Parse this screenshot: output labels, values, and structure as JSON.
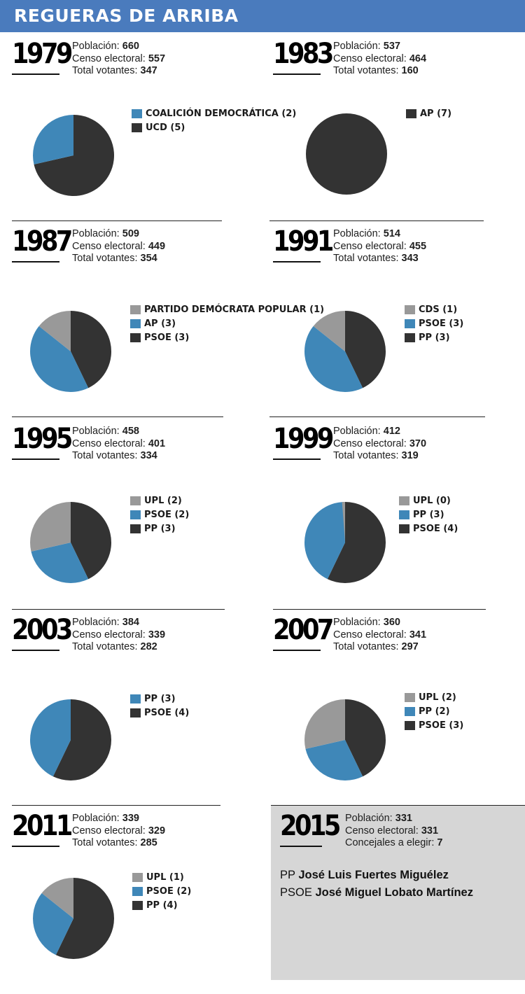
{
  "title": "REGUERAS DE ARRIBA",
  "labels": {
    "poblacion": "Población:",
    "censo": "Censo electoral:",
    "votantes": "Total votantes:",
    "concejales": "Concejales a elegir:"
  },
  "colors": {
    "gray": "#999999",
    "blue": "#3f87b8",
    "dark": "#333333"
  },
  "chart_data": [
    {
      "type": "pie",
      "year": "1979",
      "poblacion": "660",
      "censo": "557",
      "votantes": "347",
      "slices": [
        {
          "label": "COALICIÓN DEMOCRÁTICA (2)",
          "value": 2,
          "color": "#3f87b8"
        },
        {
          "label": "UCD (5)",
          "value": 5,
          "color": "#333333"
        }
      ]
    },
    {
      "type": "pie",
      "year": "1983",
      "poblacion": "537",
      "censo": "464",
      "votantes": "160",
      "slices": [
        {
          "label": "AP (7)",
          "value": 7,
          "color": "#333333"
        }
      ]
    },
    {
      "type": "pie",
      "year": "1987",
      "poblacion": "509",
      "censo": "449",
      "votantes": "354",
      "slices": [
        {
          "label": "PARTIDO DEMÓCRATA POPULAR (1)",
          "value": 1,
          "color": "#999999"
        },
        {
          "label": "AP (3)",
          "value": 3,
          "color": "#3f87b8"
        },
        {
          "label": "PSOE (3)",
          "value": 3,
          "color": "#333333"
        }
      ]
    },
    {
      "type": "pie",
      "year": "1991",
      "poblacion": "514",
      "censo": "455",
      "votantes": "343",
      "slices": [
        {
          "label": "CDS (1)",
          "value": 1,
          "color": "#999999"
        },
        {
          "label": "PSOE (3)",
          "value": 3,
          "color": "#3f87b8"
        },
        {
          "label": "PP (3)",
          "value": 3,
          "color": "#333333"
        }
      ]
    },
    {
      "type": "pie",
      "year": "1995",
      "poblacion": "458",
      "censo": "401",
      "votantes": "334",
      "slices": [
        {
          "label": "UPL (2)",
          "value": 2,
          "color": "#999999"
        },
        {
          "label": "PSOE (2)",
          "value": 2,
          "color": "#3f87b8"
        },
        {
          "label": "PP (3)",
          "value": 3,
          "color": "#333333"
        }
      ]
    },
    {
      "type": "pie",
      "year": "1999",
      "poblacion": "412",
      "censo": "370",
      "votantes": "319",
      "slices": [
        {
          "label": "UPL (0)",
          "value": 0,
          "color": "#999999"
        },
        {
          "label": "PP (3)",
          "value": 3,
          "color": "#3f87b8"
        },
        {
          "label": "PSOE (4)",
          "value": 4,
          "color": "#333333"
        }
      ]
    },
    {
      "type": "pie",
      "year": "2003",
      "poblacion": "384",
      "censo": "339",
      "votantes": "282",
      "slices": [
        {
          "label": "PP (3)",
          "value": 3,
          "color": "#3f87b8"
        },
        {
          "label": "PSOE (4)",
          "value": 4,
          "color": "#333333"
        }
      ]
    },
    {
      "type": "pie",
      "year": "2007",
      "poblacion": "360",
      "censo": "341",
      "votantes": "297",
      "slices": [
        {
          "label": "UPL (2)",
          "value": 2,
          "color": "#999999"
        },
        {
          "label": "PP (2)",
          "value": 2,
          "color": "#3f87b8"
        },
        {
          "label": "PSOE (3)",
          "value": 3,
          "color": "#333333"
        }
      ]
    },
    {
      "type": "pie",
      "year": "2011",
      "poblacion": "339",
      "censo": "329",
      "votantes": "285",
      "slices": [
        {
          "label": "UPL (1)",
          "value": 1,
          "color": "#999999"
        },
        {
          "label": "PSOE (2)",
          "value": 2,
          "color": "#3f87b8"
        },
        {
          "label": "PP (4)",
          "value": 4,
          "color": "#333333"
        }
      ]
    }
  ],
  "current": {
    "year": "2015",
    "poblacion": "331",
    "censo": "331",
    "concejales": "7",
    "candidates": [
      {
        "party": "PP",
        "name": "José Luis Fuertes Miguélez"
      },
      {
        "party": "PSOE",
        "name": "José Miguel Lobato Martínez"
      }
    ]
  }
}
